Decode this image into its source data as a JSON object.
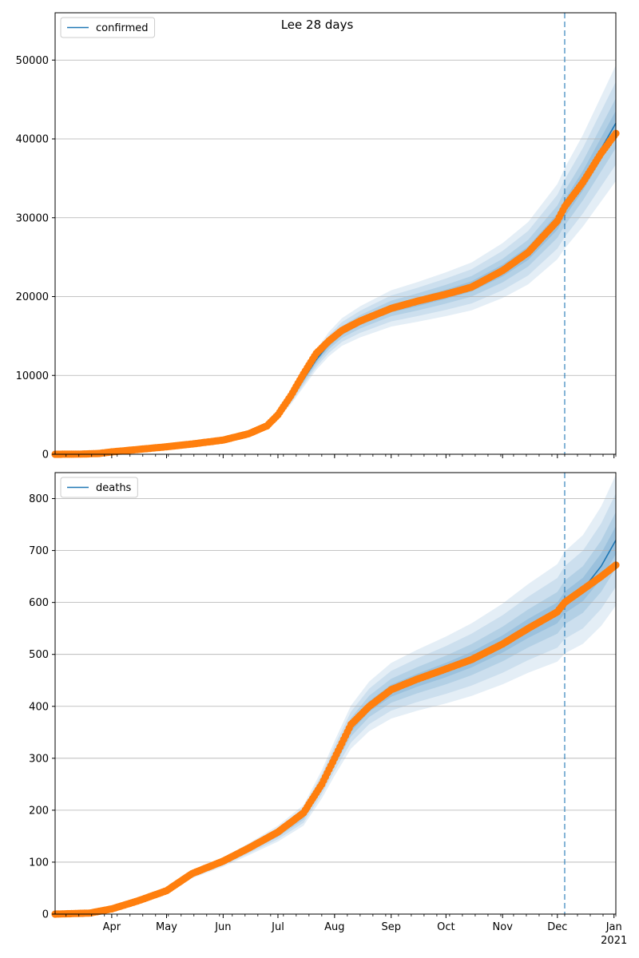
{
  "figure": {
    "title": "Lee 28 days"
  },
  "chart_data": [
    {
      "type": "line",
      "legend": [
        "confirmed"
      ],
      "legend_position": "top-left",
      "grid": "horizontal",
      "ylim": [
        0,
        56000
      ],
      "yticks": [
        0,
        10000,
        20000,
        30000,
        40000,
        50000
      ],
      "xticks": [
        {
          "date": "2020-04-01",
          "label": "Apr"
        },
        {
          "date": "2020-05-01",
          "label": "May"
        },
        {
          "date": "2020-06-01",
          "label": "Jun"
        },
        {
          "date": "2020-07-01",
          "label": "Jul"
        },
        {
          "date": "2020-08-01",
          "label": "Aug"
        },
        {
          "date": "2020-09-01",
          "label": "Sep"
        },
        {
          "date": "2020-10-01",
          "label": "Oct"
        },
        {
          "date": "2020-11-01",
          "label": "Nov"
        },
        {
          "date": "2020-12-01",
          "label": "Dec"
        },
        {
          "date": "2021-01-01",
          "label": "Jan",
          "sublabel": "2021"
        }
      ],
      "xlim": [
        "2020-03-01",
        "2021-01-02"
      ],
      "forecast_start": "2020-12-05",
      "colors": {
        "fit": "#1f77b4",
        "observed": "#ff7f0e",
        "band": "#1f77b4"
      },
      "series": [
        {
          "name": "confirmed",
          "role": "fit",
          "points": [
            [
              "2020-03-01",
              0
            ],
            [
              "2020-03-15",
              10
            ],
            [
              "2020-03-25",
              150
            ],
            [
              "2020-04-01",
              300
            ],
            [
              "2020-04-15",
              600
            ],
            [
              "2020-05-01",
              950
            ],
            [
              "2020-05-15",
              1300
            ],
            [
              "2020-06-01",
              1800
            ],
            [
              "2020-06-15",
              2600
            ],
            [
              "2020-06-25",
              3500
            ],
            [
              "2020-07-01",
              5000
            ],
            [
              "2020-07-08",
              7000
            ],
            [
              "2020-07-15",
              9500
            ],
            [
              "2020-07-22",
              12000
            ],
            [
              "2020-07-29",
              14000
            ],
            [
              "2020-08-05",
              15500
            ],
            [
              "2020-08-15",
              16800
            ],
            [
              "2020-09-01",
              18500
            ],
            [
              "2020-09-15",
              19300
            ],
            [
              "2020-10-01",
              20300
            ],
            [
              "2020-10-15",
              21300
            ],
            [
              "2020-11-01",
              23300
            ],
            [
              "2020-11-15",
              25500
            ],
            [
              "2020-12-01",
              29500
            ],
            [
              "2020-12-05",
              31200
            ],
            [
              "2020-12-15",
              34700
            ],
            [
              "2021-01-02",
              42000
            ]
          ]
        },
        {
          "name": "observed",
          "role": "observed",
          "points": [
            [
              "2020-03-01",
              0
            ],
            [
              "2020-03-15",
              20
            ],
            [
              "2020-03-25",
              100
            ],
            [
              "2020-04-01",
              300
            ],
            [
              "2020-04-15",
              600
            ],
            [
              "2020-05-01",
              950
            ],
            [
              "2020-05-15",
              1300
            ],
            [
              "2020-06-01",
              1800
            ],
            [
              "2020-06-15",
              2600
            ],
            [
              "2020-06-25",
              3600
            ],
            [
              "2020-07-01",
              5000
            ],
            [
              "2020-07-08",
              7400
            ],
            [
              "2020-07-15",
              10200
            ],
            [
              "2020-07-22",
              12800
            ],
            [
              "2020-07-29",
              14400
            ],
            [
              "2020-08-05",
              15700
            ],
            [
              "2020-08-15",
              16900
            ],
            [
              "2020-09-01",
              18500
            ],
            [
              "2020-09-15",
              19400
            ],
            [
              "2020-10-01",
              20300
            ],
            [
              "2020-10-15",
              21200
            ],
            [
              "2020-11-01",
              23300
            ],
            [
              "2020-11-15",
              25600
            ],
            [
              "2020-12-01",
              29600
            ],
            [
              "2020-12-05",
              31400
            ],
            [
              "2020-12-15",
              34500
            ],
            [
              "2020-12-25",
              38200
            ],
            [
              "2021-01-02",
              40700
            ]
          ]
        }
      ]
    },
    {
      "type": "line",
      "legend": [
        "deaths"
      ],
      "legend_position": "top-left",
      "grid": "horizontal",
      "ylim": [
        0,
        850
      ],
      "yticks": [
        0,
        100,
        200,
        300,
        400,
        500,
        600,
        700,
        800
      ],
      "xticks": [
        {
          "date": "2020-04-01",
          "label": "Apr"
        },
        {
          "date": "2020-05-01",
          "label": "May"
        },
        {
          "date": "2020-06-01",
          "label": "Jun"
        },
        {
          "date": "2020-07-01",
          "label": "Jul"
        },
        {
          "date": "2020-08-01",
          "label": "Aug"
        },
        {
          "date": "2020-09-01",
          "label": "Sep"
        },
        {
          "date": "2020-10-01",
          "label": "Oct"
        },
        {
          "date": "2020-11-01",
          "label": "Nov"
        },
        {
          "date": "2020-12-01",
          "label": "Dec"
        },
        {
          "date": "2021-01-01",
          "label": "Jan",
          "sublabel": "2021"
        }
      ],
      "xlim": [
        "2020-03-01",
        "2021-01-02"
      ],
      "forecast_start": "2020-12-05",
      "colors": {
        "fit": "#1f77b4",
        "observed": "#ff7f0e",
        "band": "#1f77b4"
      },
      "series": [
        {
          "name": "deaths",
          "role": "fit",
          "points": [
            [
              "2020-03-01",
              0
            ],
            [
              "2020-03-20",
              2
            ],
            [
              "2020-04-01",
              10
            ],
            [
              "2020-04-15",
              25
            ],
            [
              "2020-05-01",
              45
            ],
            [
              "2020-05-15",
              75
            ],
            [
              "2020-06-01",
              100
            ],
            [
              "2020-06-15",
              125
            ],
            [
              "2020-07-01",
              155
            ],
            [
              "2020-07-15",
              190
            ],
            [
              "2020-07-25",
              250
            ],
            [
              "2020-08-01",
              300
            ],
            [
              "2020-08-10",
              360
            ],
            [
              "2020-08-20",
              400
            ],
            [
              "2020-09-01",
              430
            ],
            [
              "2020-09-15",
              450
            ],
            [
              "2020-10-01",
              470
            ],
            [
              "2020-10-15",
              490
            ],
            [
              "2020-11-01",
              520
            ],
            [
              "2020-11-15",
              550
            ],
            [
              "2020-12-01",
              580
            ],
            [
              "2020-12-05",
              600
            ],
            [
              "2020-12-15",
              625
            ],
            [
              "2020-12-25",
              670
            ],
            [
              "2021-01-02",
              720
            ]
          ]
        },
        {
          "name": "observed",
          "role": "observed",
          "points": [
            [
              "2020-03-01",
              0
            ],
            [
              "2020-03-20",
              2
            ],
            [
              "2020-04-01",
              10
            ],
            [
              "2020-04-15",
              25
            ],
            [
              "2020-05-01",
              45
            ],
            [
              "2020-05-15",
              78
            ],
            [
              "2020-06-01",
              102
            ],
            [
              "2020-06-15",
              127
            ],
            [
              "2020-07-01",
              158
            ],
            [
              "2020-07-15",
              195
            ],
            [
              "2020-07-25",
              250
            ],
            [
              "2020-08-01",
              300
            ],
            [
              "2020-08-10",
              365
            ],
            [
              "2020-08-20",
              400
            ],
            [
              "2020-09-01",
              432
            ],
            [
              "2020-09-15",
              452
            ],
            [
              "2020-10-01",
              472
            ],
            [
              "2020-10-15",
              490
            ],
            [
              "2020-11-01",
              520
            ],
            [
              "2020-11-15",
              550
            ],
            [
              "2020-12-01",
              582
            ],
            [
              "2020-12-05",
              600
            ],
            [
              "2020-12-15",
              625
            ],
            [
              "2020-12-25",
              650
            ],
            [
              "2021-01-02",
              672
            ]
          ]
        }
      ]
    }
  ]
}
